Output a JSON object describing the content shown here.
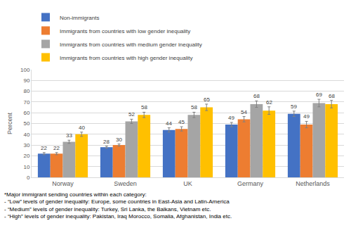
{
  "chart_data": {
    "type": "bar",
    "y_label": "Percent",
    "categories": [
      "Norway",
      "Sweden",
      "UK",
      "Germany",
      "Netherlands"
    ],
    "series": [
      {
        "name": "Non-immigrants",
        "color": "#4472c4",
        "values": [
          22,
          28,
          44,
          49,
          59
        ],
        "errors": [
          1,
          1,
          2,
          2,
          2.5
        ]
      },
      {
        "name": "Immigrants from countries with low gender inequality",
        "color": "#ed7d31",
        "values": [
          22,
          30,
          45,
          54,
          49
        ],
        "errors": [
          1,
          1,
          2,
          2.5,
          3
        ]
      },
      {
        "name": "Immigrants from countries with medium gender inequality",
        "color": "#a5a5a5",
        "values": [
          33,
          52,
          58,
          68,
          69
        ],
        "errors": [
          1.5,
          2,
          2.5,
          3,
          3.5
        ]
      },
      {
        "name": "Immigrants from countries with high gender inequality",
        "color": "#ffc000",
        "values": [
          40,
          58,
          65,
          62,
          68
        ],
        "errors": [
          2,
          2.5,
          3,
          3.5,
          3.5
        ]
      }
    ],
    "ylim": [
      0,
      100
    ],
    "yticks": [
      0,
      10,
      20,
      30,
      40,
      50,
      60,
      70,
      80,
      90,
      100
    ],
    "grid": true,
    "legend": "top",
    "data_labels": true,
    "annotations": [
      "*Major immigrant sending countries within each category:",
      "- “Low” levels of gender inequality: Europe, some countries in East-Asia and Latin-America",
      "- “Medium” levels of gender inequality: Turkey, Sri Lanka, the Balkans, Vietnam etc.",
      "- “High” levels of gender inequality: Pakistan, Iraq Morocco, Somalia, Afghanistan, India etc."
    ]
  }
}
